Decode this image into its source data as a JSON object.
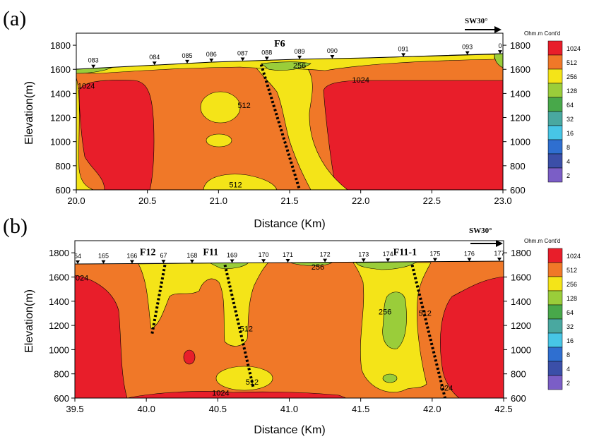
{
  "colors": {
    "c2": "#7b5ec6",
    "c4": "#3b4fa8",
    "c8": "#2f6fd0",
    "c16": "#47c6e6",
    "c32": "#49a8a0",
    "c64": "#48a84a",
    "c128": "#9acd3a",
    "c256": "#f4e418",
    "c512": "#f07828",
    "c1024": "#e81e2a"
  },
  "chart_data": [
    {
      "type": "heatmap",
      "panel_label": "(a)",
      "xlabel": "Distance (Km)",
      "ylabel": "Elevation(m)",
      "xlim": [
        20.0,
        23.0
      ],
      "ylim": [
        600,
        1900
      ],
      "x_ticks": [
        20.0,
        20.5,
        21.0,
        21.5,
        22.0,
        22.5,
        23.0
      ],
      "x_tick_labels": [
        "20.0",
        "20.5",
        "21.0",
        "21.5",
        "22.0",
        "22.5",
        "23.0"
      ],
      "y_ticks": [
        600,
        800,
        1000,
        1200,
        1400,
        1600,
        1800
      ],
      "y_tick_labels": [
        "600",
        "800",
        "1000",
        "1200",
        "1400",
        "1600",
        "1800"
      ],
      "direction_label": "SW30°",
      "stations": [
        {
          "label": "083",
          "x": 20.12
        },
        {
          "label": "084",
          "x": 20.55
        },
        {
          "label": "085",
          "x": 20.78
        },
        {
          "label": "086",
          "x": 20.95
        },
        {
          "label": "087",
          "x": 21.17
        },
        {
          "label": "088",
          "x": 21.34
        },
        {
          "label": "089",
          "x": 21.57
        },
        {
          "label": "090",
          "x": 21.8
        },
        {
          "label": "091",
          "x": 22.3
        },
        {
          "label": "093",
          "x": 22.75
        },
        {
          "label": "0",
          "x": 22.98
        }
      ],
      "faults": [
        {
          "name": "F6",
          "label_x": 21.43,
          "label_y": 1790,
          "top": [
            21.3,
            1640
          ],
          "bottom": [
            21.57,
            600
          ]
        }
      ],
      "contour_labels": [
        {
          "text": "1024",
          "x": 20.07,
          "y": 1440
        },
        {
          "text": "256",
          "x": 21.57,
          "y": 1610
        },
        {
          "text": "512",
          "x": 21.18,
          "y": 1280
        },
        {
          "text": "1024",
          "x": 22.0,
          "y": 1490
        },
        {
          "text": "512",
          "x": 21.12,
          "y": 620
        }
      ]
    },
    {
      "type": "heatmap",
      "panel_label": "(b)",
      "xlabel": "Distance (Km)",
      "ylabel": "Elevation(m)",
      "xlim": [
        39.5,
        42.5
      ],
      "ylim": [
        600,
        1900
      ],
      "x_ticks": [
        39.5,
        40.0,
        40.5,
        41.0,
        41.5,
        42.0,
        42.5
      ],
      "x_tick_labels": [
        "39.5",
        "40.0",
        "40.5",
        "41.0",
        "41.5",
        "42.0",
        "42.5"
      ],
      "y_ticks": [
        600,
        800,
        1000,
        1200,
        1400,
        1600,
        1800
      ],
      "y_tick_labels": [
        "600",
        "800",
        "1000",
        "1200",
        "1400",
        "1600",
        "1800"
      ],
      "direction_label": "SW30°",
      "stations": [
        {
          "label": "54",
          "x": 39.52
        },
        {
          "label": "165",
          "x": 39.7
        },
        {
          "label": "166",
          "x": 39.9
        },
        {
          "label": "67",
          "x": 40.12
        },
        {
          "label": "168",
          "x": 40.32
        },
        {
          "label": "169",
          "x": 40.6
        },
        {
          "label": "170",
          "x": 40.82
        },
        {
          "label": "171",
          "x": 40.99
        },
        {
          "label": "172",
          "x": 41.25
        },
        {
          "label": "173",
          "x": 41.52
        },
        {
          "label": "174",
          "x": 41.69
        },
        {
          "label": "175",
          "x": 42.02
        },
        {
          "label": "176",
          "x": 42.26
        },
        {
          "label": "177",
          "x": 42.47
        }
      ],
      "faults": [
        {
          "name": "F12",
          "label_x": 40.01,
          "label_y": 1780,
          "top": [
            40.13,
            1700
          ],
          "bottom": [
            40.04,
            1130
          ]
        },
        {
          "name": "F11",
          "label_x": 40.45,
          "label_y": 1780,
          "top": [
            40.55,
            1700
          ],
          "bottom": [
            40.75,
            680
          ]
        },
        {
          "name": "F11-1",
          "label_x": 41.81,
          "label_y": 1780,
          "top": [
            41.86,
            1700
          ],
          "bottom": [
            42.09,
            600
          ]
        }
      ],
      "contour_labels": [
        {
          "text": "024",
          "x": 39.55,
          "y": 1570
        },
        {
          "text": "256",
          "x": 41.2,
          "y": 1660
        },
        {
          "text": "512",
          "x": 40.7,
          "y": 1150
        },
        {
          "text": "512",
          "x": 40.74,
          "y": 710
        },
        {
          "text": "256",
          "x": 41.67,
          "y": 1290
        },
        {
          "text": "512",
          "x": 41.95,
          "y": 1280
        },
        {
          "text": "1024",
          "x": 40.52,
          "y": 620
        },
        {
          "text": "024",
          "x": 42.1,
          "y": 660
        }
      ]
    }
  ],
  "legend": {
    "title": "Ohm.m Cont'd",
    "items": [
      {
        "label": "1024",
        "color_key": "c1024"
      },
      {
        "label": "512",
        "color_key": "c512"
      },
      {
        "label": "256",
        "color_key": "c256"
      },
      {
        "label": "128",
        "color_key": "c128"
      },
      {
        "label": "64",
        "color_key": "c64"
      },
      {
        "label": "32",
        "color_key": "c32"
      },
      {
        "label": "16",
        "color_key": "c16"
      },
      {
        "label": "8",
        "color_key": "c8"
      },
      {
        "label": "4",
        "color_key": "c4"
      },
      {
        "label": "2",
        "color_key": "c2"
      }
    ]
  }
}
